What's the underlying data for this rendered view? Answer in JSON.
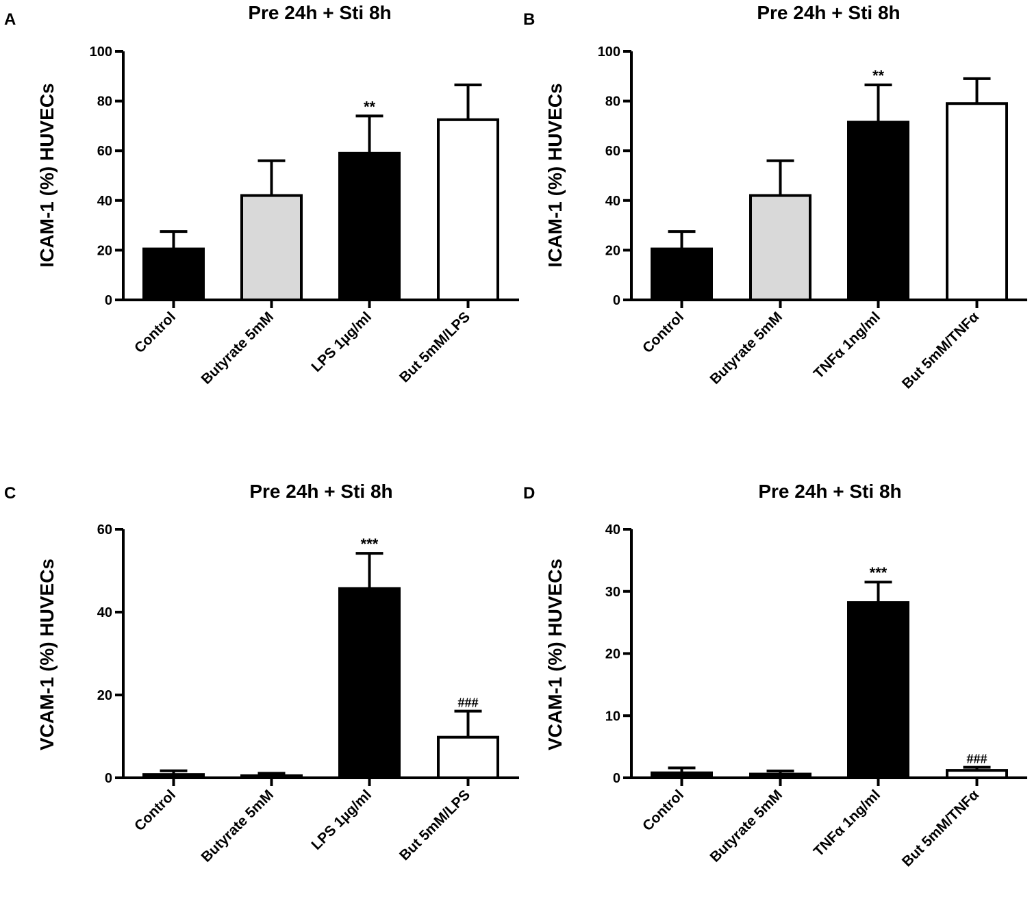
{
  "chart_data": [
    {
      "type": "bar",
      "panel": "A",
      "title": "Pre 24h + Sti 8h",
      "ylabel": "ICAM-1 (%) HUVECs",
      "xlabel": "",
      "ylim": [
        0,
        100
      ],
      "yticks": [
        0,
        20,
        40,
        60,
        80,
        100
      ],
      "categories": [
        "Control",
        "Butyrate 5mM",
        "LPS 1µg/ml",
        "But 5mM/LPS"
      ],
      "values": [
        20.5,
        42,
        59,
        72.5
      ],
      "errors": [
        7,
        14,
        15,
        14
      ],
      "fills": [
        "#000000",
        "#d9d9d9",
        "#000000",
        "#ffffff"
      ],
      "annotations": [
        "",
        "",
        "**",
        ""
      ]
    },
    {
      "type": "bar",
      "panel": "B",
      "title": "Pre 24h + Sti 8h",
      "ylabel": "ICAM-1 (%) HUVECs",
      "xlabel": "",
      "ylim": [
        0,
        100
      ],
      "yticks": [
        0,
        20,
        40,
        60,
        80,
        100
      ],
      "categories": [
        "Control",
        "Butyrate 5mM",
        "TNFα 1ng/ml",
        "But 5mM/TNFα"
      ],
      "values": [
        20.5,
        42,
        71.5,
        79
      ],
      "errors": [
        7,
        14,
        15,
        10
      ],
      "fills": [
        "#000000",
        "#d9d9d9",
        "#000000",
        "#ffffff"
      ],
      "annotations": [
        "",
        "",
        "**",
        ""
      ]
    },
    {
      "type": "bar",
      "panel": "C",
      "title": "Pre 24h + Sti 8h",
      "ylabel": "VCAM-1 (%) HUVECs",
      "xlabel": "",
      "ylim": [
        0,
        60
      ],
      "yticks": [
        0,
        20,
        40,
        60
      ],
      "categories": [
        "Control",
        "Butyrate 5mM",
        "LPS 1µg/ml",
        "But 5mM/LPS"
      ],
      "values": [
        0.8,
        0.5,
        45.7,
        9.8
      ],
      "errors": [
        0.9,
        0.6,
        8.5,
        6.3
      ],
      "fills": [
        "#000000",
        "#000000",
        "#000000",
        "#ffffff"
      ],
      "annotations": [
        "",
        "",
        "***",
        "###"
      ]
    },
    {
      "type": "bar",
      "panel": "D",
      "title": "Pre 24h + Sti 8h",
      "ylabel": "VCAM-1 (%) HUVECs",
      "xlabel": "",
      "ylim": [
        0,
        40
      ],
      "yticks": [
        0,
        10,
        20,
        30,
        40
      ],
      "categories": [
        "Control",
        "Butyrate 5mM",
        "TNFα 1ng/ml",
        "But 5mM/TNFα"
      ],
      "values": [
        0.8,
        0.6,
        28.2,
        1.2
      ],
      "errors": [
        0.8,
        0.5,
        3.3,
        0.5
      ],
      "fills": [
        "#000000",
        "#000000",
        "#000000",
        "#ffffff"
      ],
      "annotations": [
        "",
        "",
        "***",
        "###"
      ]
    }
  ]
}
